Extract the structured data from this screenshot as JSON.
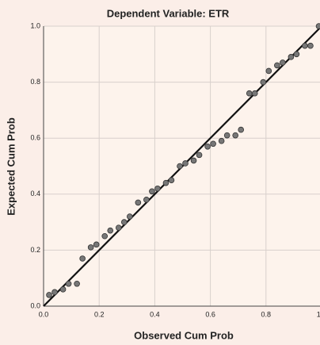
{
  "chart_data": {
    "type": "scatter",
    "title": "Dependent Variable: ETR",
    "x_label": "Observed Cum Prob",
    "y_label": "Expected Cum Prob",
    "x": [
      0.02,
      0.04,
      0.07,
      0.09,
      0.12,
      0.14,
      0.17,
      0.19,
      0.22,
      0.24,
      0.27,
      0.29,
      0.31,
      0.34,
      0.37,
      0.39,
      0.41,
      0.44,
      0.46,
      0.49,
      0.51,
      0.54,
      0.56,
      0.59,
      0.61,
      0.64,
      0.66,
      0.69,
      0.71,
      0.74,
      0.76,
      0.79,
      0.81,
      0.84,
      0.86,
      0.89,
      0.91,
      0.94,
      0.96,
      0.99
    ],
    "values": [
      0.04,
      0.05,
      0.06,
      0.08,
      0.08,
      0.17,
      0.21,
      0.22,
      0.25,
      0.27,
      0.28,
      0.3,
      0.32,
      0.37,
      0.38,
      0.41,
      0.42,
      0.44,
      0.45,
      0.5,
      0.51,
      0.52,
      0.54,
      0.57,
      0.58,
      0.59,
      0.61,
      0.61,
      0.63,
      0.76,
      0.76,
      0.8,
      0.84,
      0.86,
      0.87,
      0.89,
      0.9,
      0.93,
      0.93,
      1.0
    ],
    "color": "#777777",
    "xlim": [
      0,
      1
    ],
    "ylim": [
      0,
      1
    ],
    "xticks": [
      {
        "value": 0,
        "label": "0.0"
      },
      0.2,
      0.4,
      0.6,
      0.8,
      {
        "value": 1,
        "label": "1.0"
      }
    ],
    "yticks": [
      {
        "value": 0,
        "label": "0.0"
      },
      0.2,
      0.4,
      0.6,
      0.8,
      {
        "value": 1,
        "label": "1.0"
      }
    ],
    "grid": true
  }
}
